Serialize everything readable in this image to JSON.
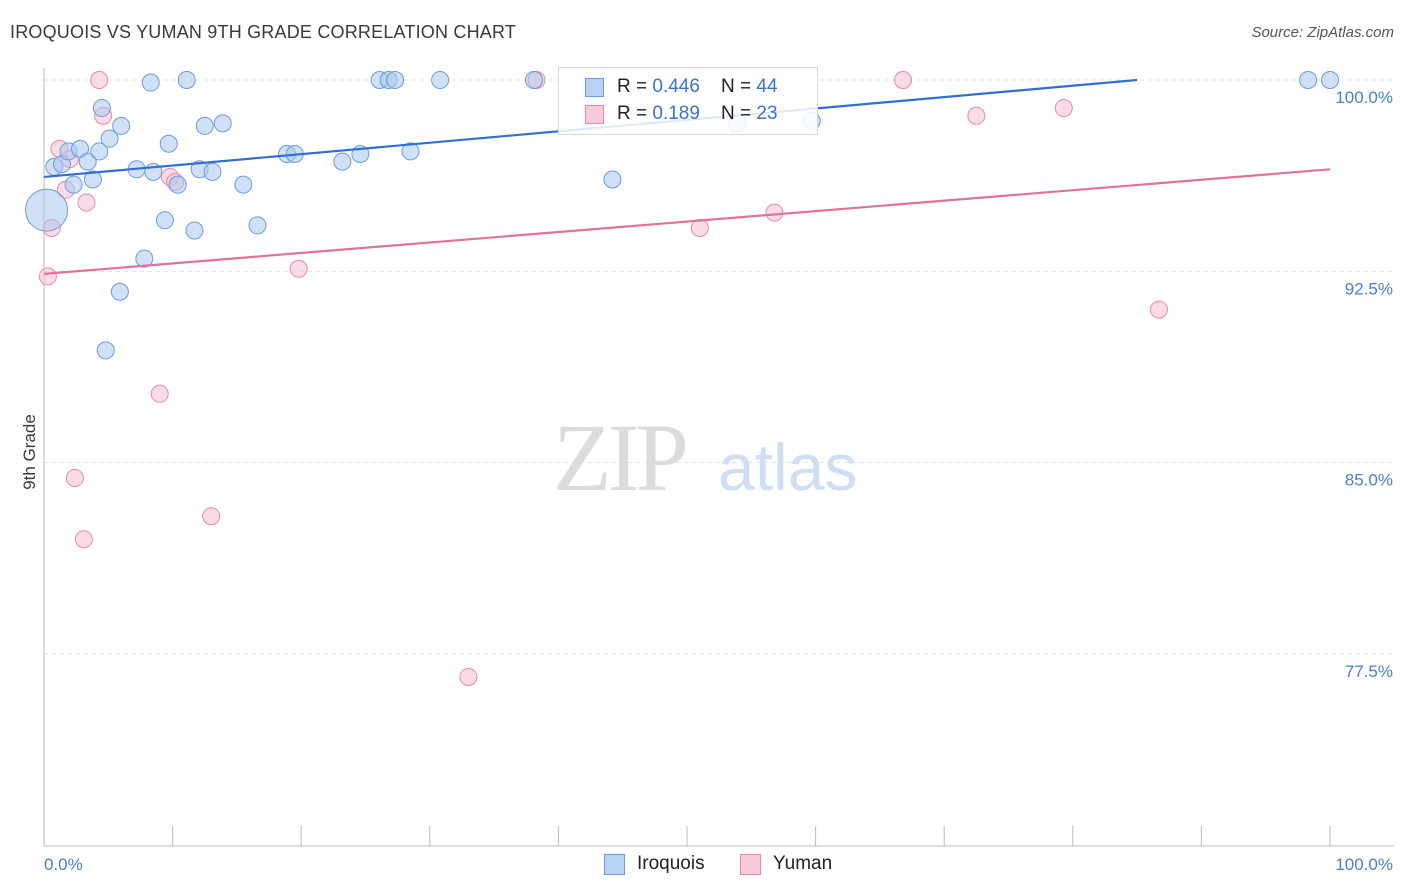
{
  "title": "IROQUOIS VS YUMAN 9TH GRADE CORRELATION CHART",
  "source": "Source: ZipAtlas.com",
  "watermark": {
    "zip": "ZIP",
    "atlas": "atlas"
  },
  "legend": {
    "rows": [
      {
        "series": "Iroquois",
        "r_label": "R = ",
        "r_value": "0.446",
        "n_label": "N = ",
        "n_value": "44"
      },
      {
        "series": "Yuman",
        "r_label": "R = ",
        "r_value": "0.189",
        "n_label": "N = ",
        "n_value": "23"
      }
    ]
  },
  "bottom_legend": {
    "iroquois": "Iroquois",
    "yuman": "Yuman"
  },
  "colors": {
    "iroquois_fill": "#a9c8f0",
    "iroquois_stroke": "#6c9be0",
    "iroquois_line": "#2f6fcf",
    "yuman_fill": "#f7c0d2",
    "yuman_stroke": "#e88aaa",
    "yuman_line": "#e0739a",
    "grid": "#e2e2e2",
    "axis": "#bbbbbb",
    "tick_label": "#4a7fd0"
  },
  "chart_data": {
    "type": "scatter",
    "title": "IROQUOIS VS YUMAN 9TH GRADE CORRELATION CHART",
    "xlabel": "",
    "ylabel": "9th Grade",
    "xlim": [
      0,
      100
    ],
    "ylim": [
      70.0,
      101.0
    ],
    "x_tick_labels": [
      {
        "value": 0,
        "label": "0.0%"
      },
      {
        "value": 100,
        "label": "100.0%"
      }
    ],
    "y_ticks": [
      {
        "value": 100.0,
        "label": "100.0%"
      },
      {
        "value": 92.5,
        "label": "92.5%"
      },
      {
        "value": 85.0,
        "label": "85.0%"
      },
      {
        "value": 77.5,
        "label": "77.5%"
      }
    ],
    "series": [
      {
        "name": "Iroquois",
        "trend": {
          "x0": 0,
          "y0": 96.2,
          "x1": 85,
          "y1": 100.0
        },
        "points": [
          {
            "x": 0.2,
            "y": 94.9,
            "big": true
          },
          {
            "x": 0.8,
            "y": 96.6
          },
          {
            "x": 1.4,
            "y": 96.7
          },
          {
            "x": 1.9,
            "y": 97.2
          },
          {
            "x": 2.3,
            "y": 95.9
          },
          {
            "x": 2.8,
            "y": 97.3
          },
          {
            "x": 3.4,
            "y": 96.8
          },
          {
            "x": 3.8,
            "y": 96.1
          },
          {
            "x": 4.3,
            "y": 97.2
          },
          {
            "x": 4.5,
            "y": 98.9
          },
          {
            "x": 5.1,
            "y": 97.7
          },
          {
            "x": 6.0,
            "y": 98.2
          },
          {
            "x": 4.8,
            "y": 89.4
          },
          {
            "x": 5.9,
            "y": 91.7
          },
          {
            "x": 7.2,
            "y": 96.5
          },
          {
            "x": 7.8,
            "y": 93.0
          },
          {
            "x": 8.3,
            "y": 99.9
          },
          {
            "x": 8.5,
            "y": 96.4
          },
          {
            "x": 9.4,
            "y": 94.5
          },
          {
            "x": 9.7,
            "y": 97.5
          },
          {
            "x": 10.4,
            "y": 95.9
          },
          {
            "x": 11.1,
            "y": 100.0
          },
          {
            "x": 11.7,
            "y": 94.1
          },
          {
            "x": 12.1,
            "y": 96.5
          },
          {
            "x": 12.5,
            "y": 98.2
          },
          {
            "x": 13.1,
            "y": 96.4
          },
          {
            "x": 13.9,
            "y": 98.3
          },
          {
            "x": 15.5,
            "y": 95.9
          },
          {
            "x": 16.6,
            "y": 94.3
          },
          {
            "x": 18.9,
            "y": 97.1
          },
          {
            "x": 19.5,
            "y": 97.1
          },
          {
            "x": 23.2,
            "y": 96.8
          },
          {
            "x": 24.6,
            "y": 97.1
          },
          {
            "x": 26.1,
            "y": 100.0
          },
          {
            "x": 26.8,
            "y": 100.0
          },
          {
            "x": 27.3,
            "y": 100.0
          },
          {
            "x": 28.5,
            "y": 97.2
          },
          {
            "x": 30.8,
            "y": 100.0
          },
          {
            "x": 38.1,
            "y": 100.0
          },
          {
            "x": 44.2,
            "y": 96.1
          },
          {
            "x": 53.9,
            "y": 98.3
          },
          {
            "x": 59.7,
            "y": 98.4
          },
          {
            "x": 98.3,
            "y": 100.0
          },
          {
            "x": 100.0,
            "y": 100.0
          }
        ]
      },
      {
        "name": "Yuman",
        "trend": {
          "x0": 0,
          "y0": 92.4,
          "x1": 100,
          "y1": 96.5
        },
        "points": [
          {
            "x": 0.3,
            "y": 92.3
          },
          {
            "x": 0.6,
            "y": 94.2
          },
          {
            "x": 1.2,
            "y": 97.3
          },
          {
            "x": 1.7,
            "y": 95.7
          },
          {
            "x": 2.0,
            "y": 96.9
          },
          {
            "x": 2.4,
            "y": 84.4
          },
          {
            "x": 3.1,
            "y": 82.0
          },
          {
            "x": 3.3,
            "y": 95.2
          },
          {
            "x": 4.3,
            "y": 100.0
          },
          {
            "x": 4.6,
            "y": 98.6
          },
          {
            "x": 9.0,
            "y": 87.7
          },
          {
            "x": 9.8,
            "y": 96.2
          },
          {
            "x": 10.2,
            "y": 96.0
          },
          {
            "x": 13.0,
            "y": 82.9
          },
          {
            "x": 19.8,
            "y": 92.6
          },
          {
            "x": 33.0,
            "y": 76.6
          },
          {
            "x": 38.3,
            "y": 100.0
          },
          {
            "x": 51.0,
            "y": 94.2
          },
          {
            "x": 56.8,
            "y": 94.8
          },
          {
            "x": 66.8,
            "y": 100.0
          },
          {
            "x": 72.5,
            "y": 98.6
          },
          {
            "x": 79.3,
            "y": 98.9
          },
          {
            "x": 86.7,
            "y": 91.0
          }
        ]
      }
    ]
  }
}
